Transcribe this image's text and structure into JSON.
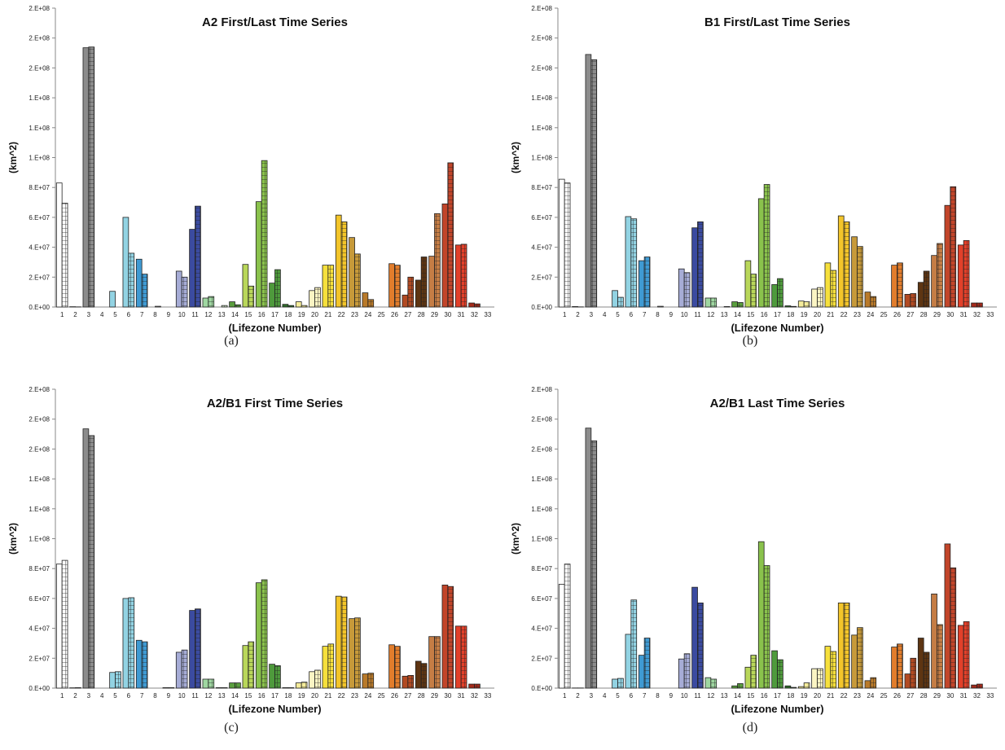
{
  "palette": {
    "1": "#ffffff",
    "2": "#ffffff",
    "3": "#8c8c8c",
    "4": "#ffffff",
    "5": "#92d3e3",
    "6": "#92d3e3",
    "7": "#3f9ad3",
    "8": "#ffffff",
    "9": "#e8e8f4",
    "10": "#a6acd6",
    "11": "#3b4ba0",
    "12": "#9fd7a1",
    "13": "#d9f0d0",
    "14": "#5a9e3e",
    "15": "#b9d75a",
    "16": "#8ac24c",
    "17": "#4e9a3c",
    "18": "#2f6b2a",
    "19": "#f5ec9a",
    "20": "#fbf5c4",
    "21": "#f6e03c",
    "22": "#f3c52a",
    "23": "#c79a3a",
    "24": "#b97a2a",
    "25": "#e8cfa6",
    "26": "#e27d2c",
    "27": "#b24a22",
    "28": "#5e3512",
    "29": "#c57d45",
    "30": "#c2452a",
    "31": "#e2402a",
    "32": "#a32a1a",
    "33": "#b33020"
  },
  "chart_data": [
    {
      "type": "bar",
      "panel_label": "(a)",
      "title": "A2 First/Last Time Series",
      "xlabel": "(Lifezone Number)",
      "ylabel": "(km^2)",
      "ytick_labels": [
        "0.0E+00",
        "2.0E+07",
        "4.0E+07",
        "6.0E+07",
        "8.0E+07",
        "1.0E+08",
        "1.2E+08",
        "1.4E+08",
        "1.6E+08",
        "1.8E+08",
        "2.0E+08"
      ],
      "printed_ytick_labels": [
        "0.E+00",
        "2.E+07",
        "4.E+07",
        "6.E+07",
        "8.E+07",
        "1.E+08",
        "1.E+08",
        "1.E+08",
        "2.E+08",
        "2.E+08",
        "2.E+08"
      ],
      "ylim": [
        0,
        200000000
      ],
      "categories": [
        "1",
        "2",
        "3",
        "4",
        "5",
        "6",
        "7",
        "8",
        "9",
        "10",
        "11",
        "12",
        "13",
        "14",
        "15",
        "16",
        "17",
        "18",
        "19",
        "20",
        "21",
        "22",
        "23",
        "24",
        "25",
        "26",
        "27",
        "28",
        "29",
        "30",
        "31",
        "32",
        "33"
      ],
      "series": [
        {
          "pattern": "plain",
          "values": [
            83000000,
            200000,
            173500000,
            0,
            10500000,
            60000000,
            32000000,
            0,
            0,
            24000000,
            52000000,
            6000000,
            0,
            3500000,
            28500000,
            70500000,
            16000000,
            1800000,
            3500000,
            11000000,
            28000000,
            61500000,
            46500000,
            9500000,
            0,
            29000000,
            8000000,
            18000000,
            34000000,
            69000000,
            41500000,
            2700000,
            0
          ]
        },
        {
          "pattern": "grid",
          "values": [
            69500000,
            100000,
            174000000,
            0,
            0,
            36000000,
            22000000,
            500000,
            0,
            20000000,
            67500000,
            7000000,
            1000000,
            1500000,
            14000000,
            98000000,
            25000000,
            1000000,
            1000000,
            13000000,
            28000000,
            57000000,
            35500000,
            5000000,
            0,
            28000000,
            20000000,
            33500000,
            62500000,
            96500000,
            42000000,
            2100000,
            0
          ]
        }
      ]
    },
    {
      "type": "bar",
      "panel_label": "(b)",
      "title": "B1 First/Last Time Series",
      "xlabel": "(Lifezone Number)",
      "ylabel": "(km^2)",
      "ytick_labels": [
        "0.0E+00",
        "2.0E+07",
        "4.0E+07",
        "6.0E+07",
        "8.0E+07",
        "1.0E+08",
        "1.2E+08",
        "1.4E+08",
        "1.6E+08",
        "1.8E+08",
        "2.0E+08"
      ],
      "printed_ytick_labels": [
        "0.E+00",
        "2.E+07",
        "4.E+07",
        "6.E+07",
        "8.E+07",
        "1.E+08",
        "1.E+08",
        "1.E+08",
        "2.E+08",
        "2.E+08",
        "2.E+08"
      ],
      "ylim": [
        0,
        200000000
      ],
      "categories": [
        "1",
        "2",
        "3",
        "4",
        "5",
        "6",
        "7",
        "8",
        "9",
        "10",
        "11",
        "12",
        "13",
        "14",
        "15",
        "16",
        "17",
        "18",
        "19",
        "20",
        "21",
        "22",
        "23",
        "24",
        "25",
        "26",
        "27",
        "28",
        "29",
        "30",
        "31",
        "32",
        "33"
      ],
      "series": [
        {
          "pattern": "plain",
          "values": [
            85500000,
            300000,
            169000000,
            0,
            11000000,
            60500000,
            31000000,
            0,
            0,
            25500000,
            53000000,
            6000000,
            0,
            3500000,
            31000000,
            72500000,
            15000000,
            800000,
            4000000,
            12000000,
            29500000,
            61000000,
            47000000,
            10000000,
            0,
            28000000,
            8500000,
            16500000,
            34500000,
            68000000,
            41500000,
            2700000,
            0
          ]
        },
        {
          "pattern": "grid",
          "values": [
            83000000,
            100000,
            165500000,
            0,
            6500000,
            59000000,
            33500000,
            500000,
            0,
            23000000,
            57000000,
            6000000,
            300000,
            3000000,
            22000000,
            82000000,
            19000000,
            400000,
            3500000,
            13000000,
            24500000,
            57000000,
            40500000,
            7000000,
            0,
            29500000,
            9000000,
            24000000,
            42500000,
            80500000,
            44500000,
            2700000,
            0
          ]
        }
      ]
    },
    {
      "type": "bar",
      "panel_label": "(c)",
      "title": "A2/B1 First Time Series",
      "xlabel": "(Lifezone Number)",
      "ylabel": "(km^2)",
      "ytick_labels": [
        "0.0E+00",
        "2.0E+07",
        "4.0E+07",
        "6.0E+07",
        "8.0E+07",
        "1.0E+08",
        "1.2E+08",
        "1.4E+08",
        "1.6E+08",
        "1.8E+08",
        "2.0E+08"
      ],
      "printed_ytick_labels": [
        "0.E+00",
        "2.E+07",
        "4.E+07",
        "6.E+07",
        "8.E+07",
        "1.E+08",
        "1.E+08",
        "1.E+08",
        "2.E+08",
        "2.E+08",
        "2.E+08"
      ],
      "ylim": [
        0,
        200000000
      ],
      "categories": [
        "1",
        "2",
        "3",
        "4",
        "5",
        "6",
        "7",
        "8",
        "9",
        "10",
        "11",
        "12",
        "13",
        "14",
        "15",
        "16",
        "17",
        "18",
        "19",
        "20",
        "21",
        "22",
        "23",
        "24",
        "25",
        "26",
        "27",
        "28",
        "29",
        "30",
        "31",
        "32",
        "33"
      ],
      "series": [
        {
          "pattern": "plain",
          "values": [
            83000000,
            200000,
            173500000,
            0,
            10500000,
            60000000,
            32000000,
            0,
            300000,
            24000000,
            52000000,
            6000000,
            300000,
            3500000,
            28500000,
            70500000,
            16000000,
            300000,
            3500000,
            11000000,
            28000000,
            61500000,
            46500000,
            9500000,
            0,
            29000000,
            8000000,
            18000000,
            34500000,
            69000000,
            41500000,
            2700000,
            0
          ]
        },
        {
          "pattern": "grid",
          "values": [
            85500000,
            300000,
            169000000,
            0,
            11000000,
            60500000,
            31000000,
            0,
            300000,
            25500000,
            53000000,
            6000000,
            300000,
            3500000,
            31000000,
            72500000,
            15000000,
            300000,
            4000000,
            12000000,
            29500000,
            61000000,
            47000000,
            10000000,
            0,
            28000000,
            8500000,
            16500000,
            34500000,
            68000000,
            41500000,
            2700000,
            0
          ]
        }
      ]
    },
    {
      "type": "bar",
      "panel_label": "(d)",
      "title": "A2/B1 Last Time Series",
      "xlabel": "(Lifezone Number)",
      "ylabel": "(km^2)",
      "ytick_labels": [
        "0.0E+00",
        "2.0E+07",
        "4.0E+07",
        "6.0E+07",
        "8.0E+07",
        "1.0E+08",
        "1.2E+08",
        "1.4E+08",
        "1.6E+08",
        "1.8E+08",
        "2.0E+08"
      ],
      "printed_ytick_labels": [
        "0.E+00",
        "2.E+07",
        "4.E+07",
        "6.E+07",
        "8.E+07",
        "1.E+08",
        "1.E+08",
        "1.E+08",
        "2.E+08",
        "2.E+08",
        "2.E+08"
      ],
      "ylim": [
        0,
        200000000
      ],
      "categories": [
        "1",
        "2",
        "3",
        "4",
        "5",
        "6",
        "7",
        "8",
        "9",
        "10",
        "11",
        "12",
        "13",
        "14",
        "15",
        "16",
        "17",
        "18",
        "19",
        "20",
        "21",
        "22",
        "23",
        "24",
        "25",
        "26",
        "27",
        "28",
        "29",
        "30",
        "31",
        "32",
        "33"
      ],
      "series": [
        {
          "pattern": "plain",
          "values": [
            69500000,
            100000,
            174000000,
            0,
            6000000,
            36000000,
            22000000,
            0,
            0,
            19500000,
            67500000,
            7000000,
            0,
            1500000,
            14000000,
            98000000,
            25000000,
            1500000,
            1000000,
            13000000,
            28000000,
            57000000,
            35500000,
            5000000,
            0,
            27500000,
            9500000,
            33500000,
            63000000,
            96500000,
            42000000,
            2100000,
            0
          ]
        },
        {
          "pattern": "grid",
          "values": [
            83000000,
            100000,
            165500000,
            0,
            6500000,
            59000000,
            33500000,
            0,
            0,
            23000000,
            57000000,
            6000000,
            0,
            3000000,
            22000000,
            82000000,
            19000000,
            500000,
            3500000,
            13000000,
            24500000,
            57000000,
            40500000,
            7000000,
            0,
            29500000,
            20000000,
            24000000,
            42500000,
            80500000,
            44500000,
            2700000,
            0
          ]
        }
      ]
    }
  ]
}
